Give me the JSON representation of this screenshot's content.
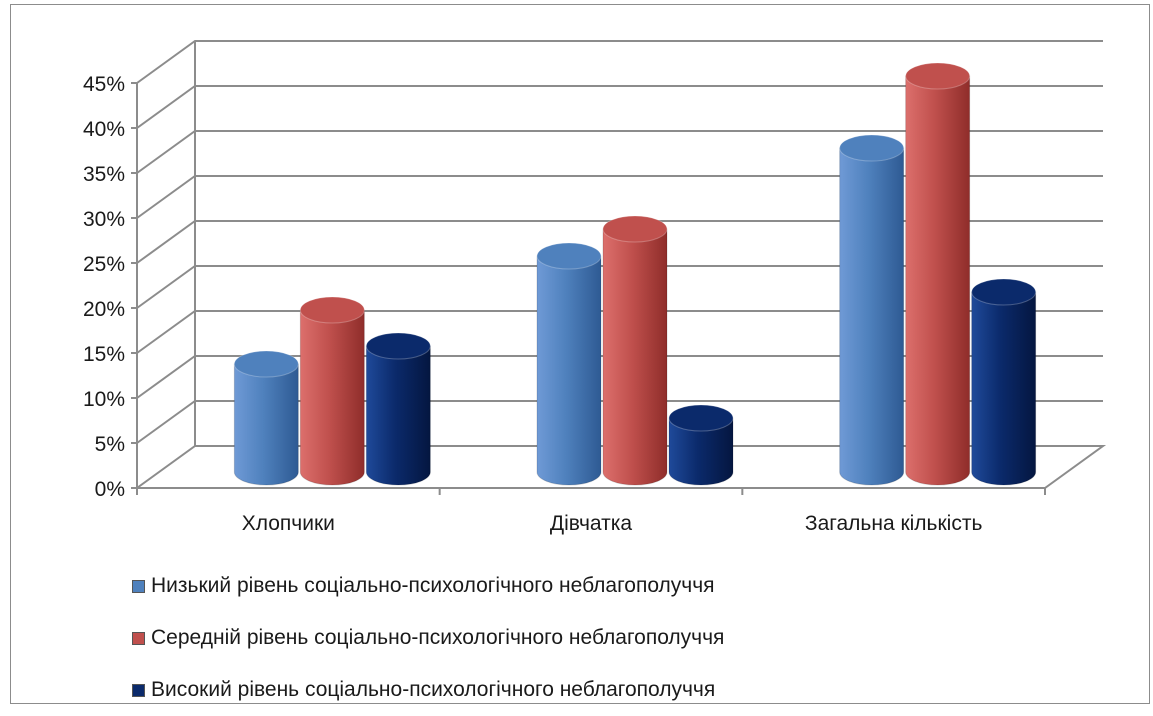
{
  "chart_data": {
    "type": "bar",
    "categories": [
      "Хлопчики",
      "Дівчатка",
      "Загальна кількість"
    ],
    "series": [
      {
        "name": "Низький рівень соціально-психологічного неблагополуччя",
        "values": [
          12,
          24,
          36
        ],
        "color": "#4f81bd"
      },
      {
        "name": "Середній рівень соціально-психологічного неблагополуччя",
        "values": [
          18,
          27,
          44
        ],
        "color": "#c0504d"
      },
      {
        "name": "Високий рівень соціально-психологічного неблагополуччя",
        "values": [
          14,
          6,
          20
        ],
        "color": "#0b2a6b"
      }
    ],
    "y_ticks": [
      "0%",
      "5%",
      "10%",
      "15%",
      "20%",
      "25%",
      "30%",
      "35%",
      "40%",
      "45%"
    ],
    "ylim": [
      0,
      45
    ],
    "grid": true,
    "legend_position": "bottom"
  }
}
